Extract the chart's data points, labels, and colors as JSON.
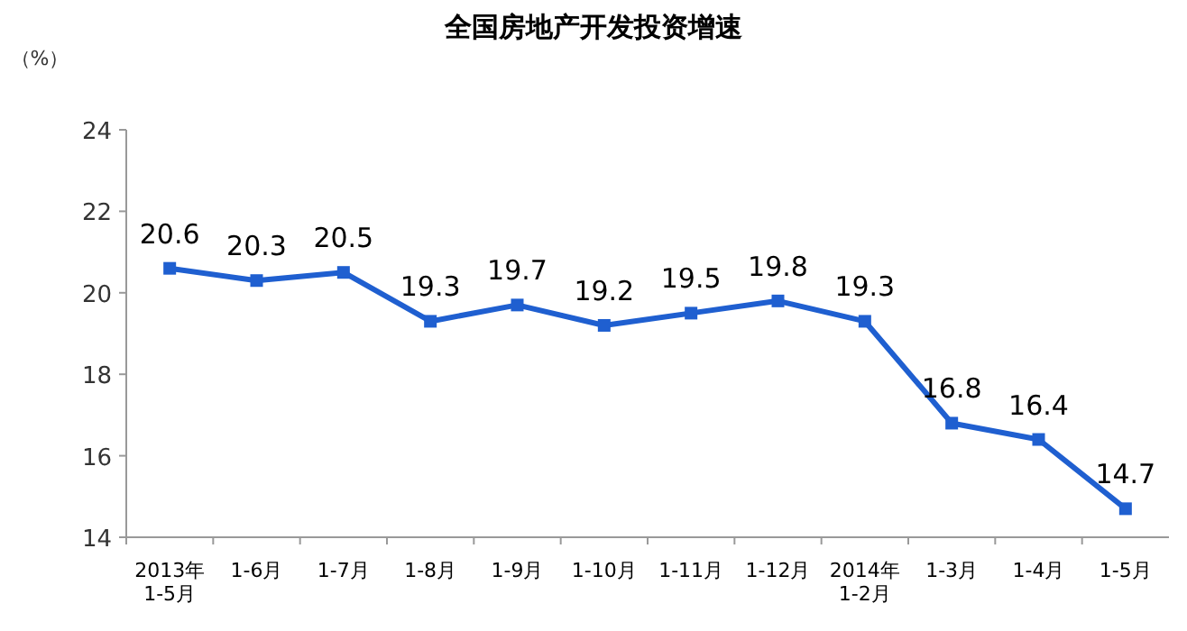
{
  "chart_data": {
    "type": "line",
    "title": "全国房地产开发投资增速",
    "ylabel": "（%）",
    "categories": [
      "2013年\n1-5月",
      "1-6月",
      "1-7月",
      "1-8月",
      "1-9月",
      "1-10月",
      "1-11月",
      "1-12月",
      "2014年\n1-2月",
      "1-3月",
      "1-4月",
      "1-5月"
    ],
    "series": [
      {
        "color": "#1f5fd0",
        "values": [
          20.6,
          20.3,
          20.5,
          19.3,
          19.7,
          19.2,
          19.5,
          19.8,
          19.3,
          16.8,
          16.4,
          14.7
        ]
      }
    ],
    "ylim": [
      14,
      24
    ],
    "yticks": [
      14,
      16,
      18,
      20,
      22,
      24
    ],
    "data_labels": true,
    "marker": "square",
    "line_style": "solid"
  }
}
